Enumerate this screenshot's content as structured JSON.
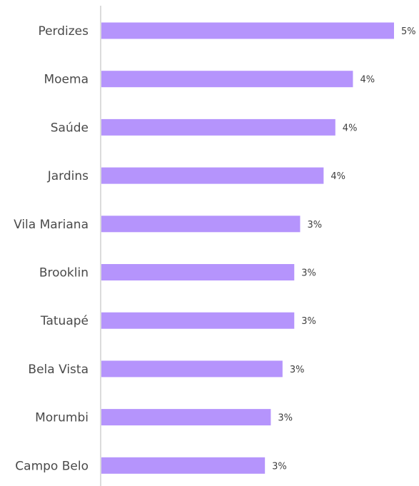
{
  "chart_data": {
    "type": "bar",
    "orientation": "horizontal",
    "title": "",
    "xlabel": "",
    "ylabel": "",
    "categories": [
      "Perdizes",
      "Moema",
      "Saúde",
      "Jardins",
      "Vila Mariana",
      "Brooklin",
      "Tatuapé",
      "Bela Vista",
      "Morumbi",
      "Campo Belo"
    ],
    "values": [
      5.0,
      4.3,
      4.0,
      3.8,
      3.4,
      3.3,
      3.3,
      3.1,
      2.9,
      2.8
    ],
    "value_labels": [
      "5%",
      "4%",
      "4%",
      "4%",
      "3%",
      "3%",
      "3%",
      "3%",
      "3%",
      "3%"
    ],
    "xlim": [
      0,
      5.0
    ],
    "grid": false,
    "bar_color": "#b594fc",
    "axis_color": "#d0d0d0"
  }
}
